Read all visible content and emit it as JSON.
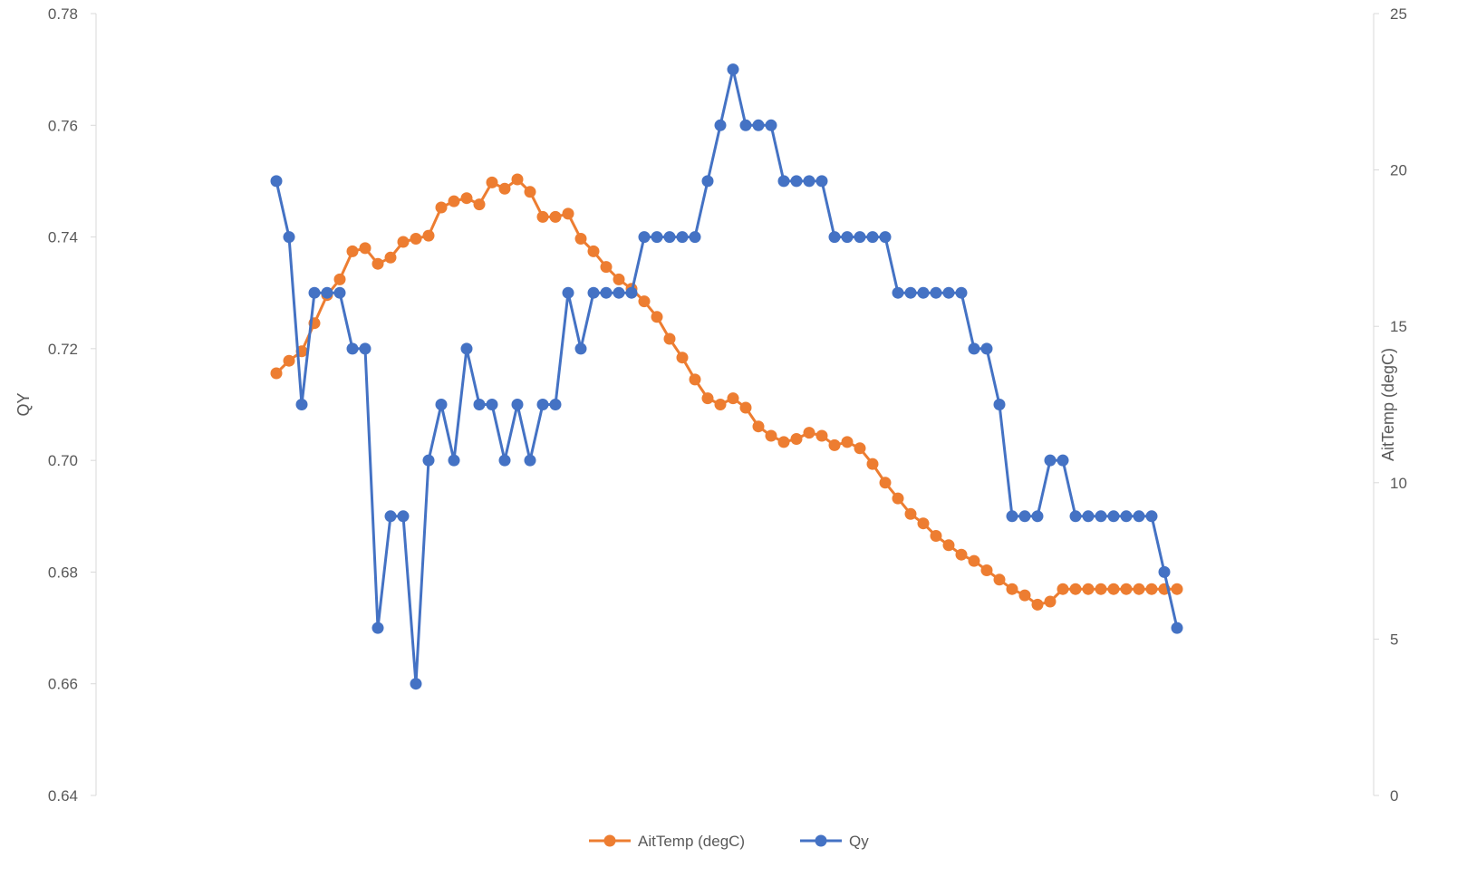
{
  "chart_data": {
    "type": "line",
    "title": "",
    "grid": false,
    "legend_position": "bottom",
    "y_left": {
      "label": "QY",
      "range": [
        0.64,
        0.78
      ],
      "ticks": [
        "0.64",
        "0.66",
        "0.68",
        "0.70",
        "0.72",
        "0.74",
        "0.76",
        "0.78"
      ]
    },
    "y_right": {
      "label": "AitTemp (degC)",
      "range": [
        0,
        25
      ],
      "ticks": [
        "0",
        "5",
        "10",
        "15",
        "20",
        "25"
      ]
    },
    "point_count": 72,
    "series": [
      {
        "name": "AitTemp (degC)",
        "axis": "right",
        "color": "#ED7D31",
        "marker": "circle",
        "values": [
          13.5,
          13.9,
          14.2,
          15.1,
          16.0,
          16.5,
          17.4,
          17.5,
          17.0,
          17.2,
          17.7,
          17.8,
          17.9,
          18.8,
          19.0,
          19.1,
          18.9,
          19.6,
          19.4,
          19.7,
          19.3,
          18.5,
          18.5,
          18.6,
          17.8,
          17.4,
          16.9,
          16.5,
          16.2,
          15.8,
          15.3,
          14.6,
          14.0,
          13.3,
          12.7,
          12.5,
          12.7,
          12.4,
          11.8,
          11.5,
          11.3,
          11.4,
          11.6,
          11.5,
          11.2,
          11.3,
          11.1,
          10.6,
          10.0,
          9.5,
          9.0,
          8.7,
          8.3,
          8.0,
          7.7,
          7.5,
          7.2,
          6.9,
          6.6,
          6.4,
          6.1,
          6.2,
          6.6,
          6.6,
          6.6,
          6.6,
          6.6,
          6.6,
          6.6,
          6.6,
          6.6,
          6.6
        ]
      },
      {
        "name": "Qy",
        "axis": "left",
        "color": "#4472C4",
        "marker": "circle",
        "values": [
          0.75,
          0.74,
          0.71,
          0.73,
          0.73,
          0.73,
          0.72,
          0.72,
          0.67,
          0.69,
          0.69,
          0.66,
          0.7,
          0.71,
          0.7,
          0.72,
          0.71,
          0.71,
          0.7,
          0.71,
          0.7,
          0.71,
          0.71,
          0.73,
          0.72,
          0.73,
          0.73,
          0.73,
          0.73,
          0.74,
          0.74,
          0.74,
          0.74,
          0.74,
          0.75,
          0.76,
          0.77,
          0.76,
          0.76,
          0.76,
          0.75,
          0.75,
          0.75,
          0.75,
          0.74,
          0.74,
          0.74,
          0.74,
          0.74,
          0.73,
          0.73,
          0.73,
          0.73,
          0.73,
          0.73,
          0.72,
          0.72,
          0.71,
          0.69,
          0.69,
          0.69,
          0.7,
          0.7,
          0.69,
          0.69,
          0.69,
          0.69,
          0.69,
          0.69,
          0.69,
          0.68,
          0.67
        ]
      }
    ]
  }
}
